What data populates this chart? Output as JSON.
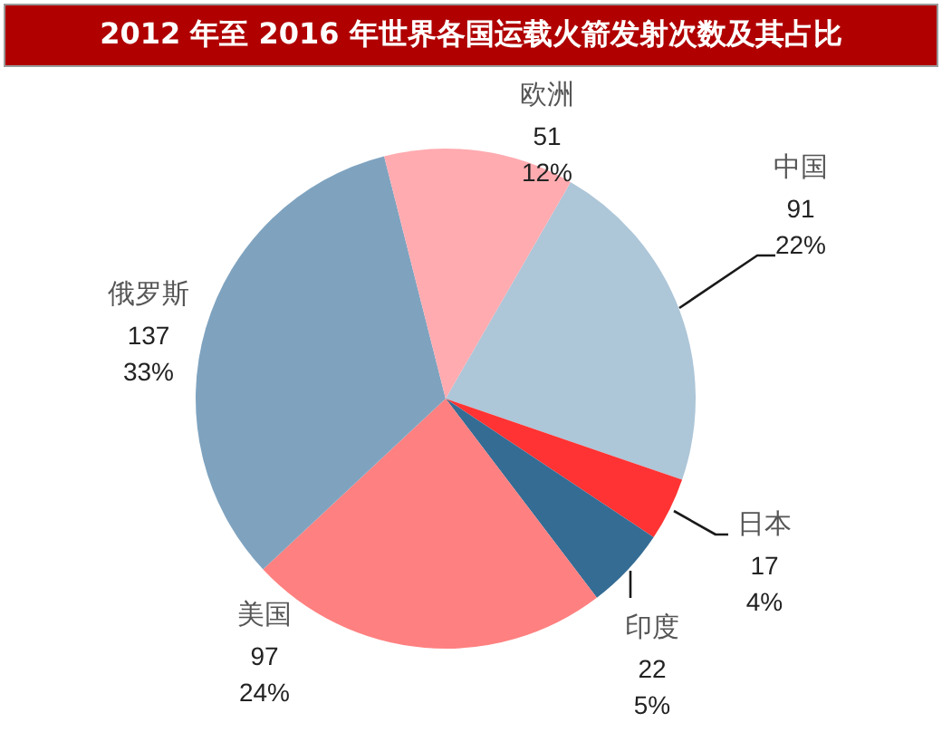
{
  "chart_data": {
    "type": "pie",
    "title": "2012 年至 2016 年世界各国运载火箭发射次数及其占比",
    "categories": [
      "中国",
      "日本",
      "印度",
      "美国",
      "俄罗斯",
      "欧洲"
    ],
    "values": [
      91,
      17,
      22,
      97,
      137,
      51
    ],
    "colors": [
      "#adc6d8",
      "#ff3333",
      "#346c94",
      "#ff8080",
      "#7fa3bf",
      "#ffabb0"
    ],
    "value_labels": [
      "91\n22%",
      "17\n4%",
      "22\n5%",
      "97\n24%",
      "137\n33%",
      "51\n12%"
    ]
  }
}
